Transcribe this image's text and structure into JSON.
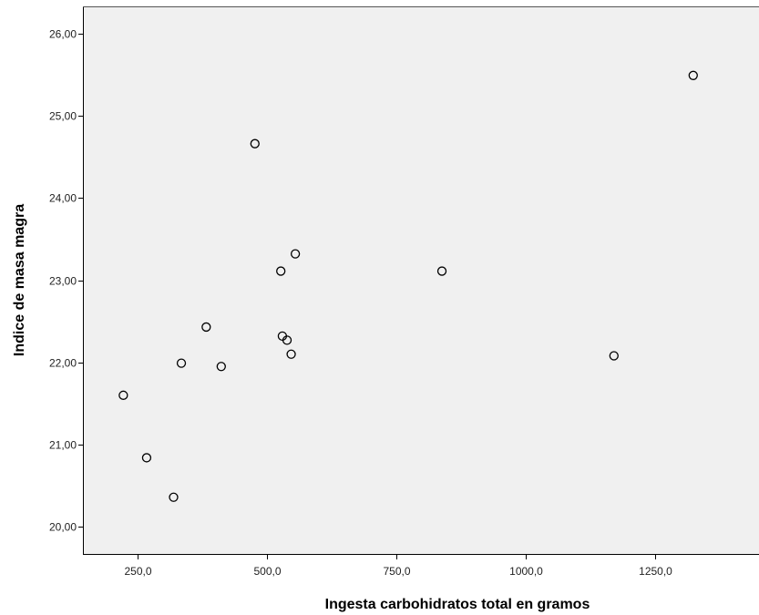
{
  "chart_data": {
    "type": "scatter",
    "title": "",
    "xlabel": "Ingesta carbohidratos total en gramos",
    "ylabel": "Indice de masa magra",
    "xlim": [
      145,
      1450
    ],
    "ylim": [
      19.67,
      26.33
    ],
    "x_ticks": [
      {
        "value": 250,
        "label": "250,0"
      },
      {
        "value": 500,
        "label": "500,0"
      },
      {
        "value": 750,
        "label": "750,0"
      },
      {
        "value": 1000,
        "label": "1000,0"
      },
      {
        "value": 1250,
        "label": "1250,0"
      }
    ],
    "y_ticks": [
      {
        "value": 20,
        "label": "20,00"
      },
      {
        "value": 21,
        "label": "21,00"
      },
      {
        "value": 22,
        "label": "22,00"
      },
      {
        "value": 23,
        "label": "23,00"
      },
      {
        "value": 24,
        "label": "24,00"
      },
      {
        "value": 25,
        "label": "25,00"
      },
      {
        "value": 26,
        "label": "26,00"
      }
    ],
    "grid": false,
    "plot_background": "#f0f0f0",
    "marker": "hollow-circle",
    "points": [
      {
        "x": 223,
        "y": 21.6
      },
      {
        "x": 268,
        "y": 20.84
      },
      {
        "x": 320,
        "y": 20.36
      },
      {
        "x": 335,
        "y": 21.99
      },
      {
        "x": 383,
        "y": 22.43
      },
      {
        "x": 412,
        "y": 21.95
      },
      {
        "x": 477,
        "y": 24.66
      },
      {
        "x": 527,
        "y": 23.11
      },
      {
        "x": 530,
        "y": 22.32
      },
      {
        "x": 539,
        "y": 22.27
      },
      {
        "x": 547,
        "y": 22.1
      },
      {
        "x": 555,
        "y": 23.32
      },
      {
        "x": 838,
        "y": 23.11
      },
      {
        "x": 1170,
        "y": 22.08
      },
      {
        "x": 1323,
        "y": 25.49
      }
    ]
  }
}
